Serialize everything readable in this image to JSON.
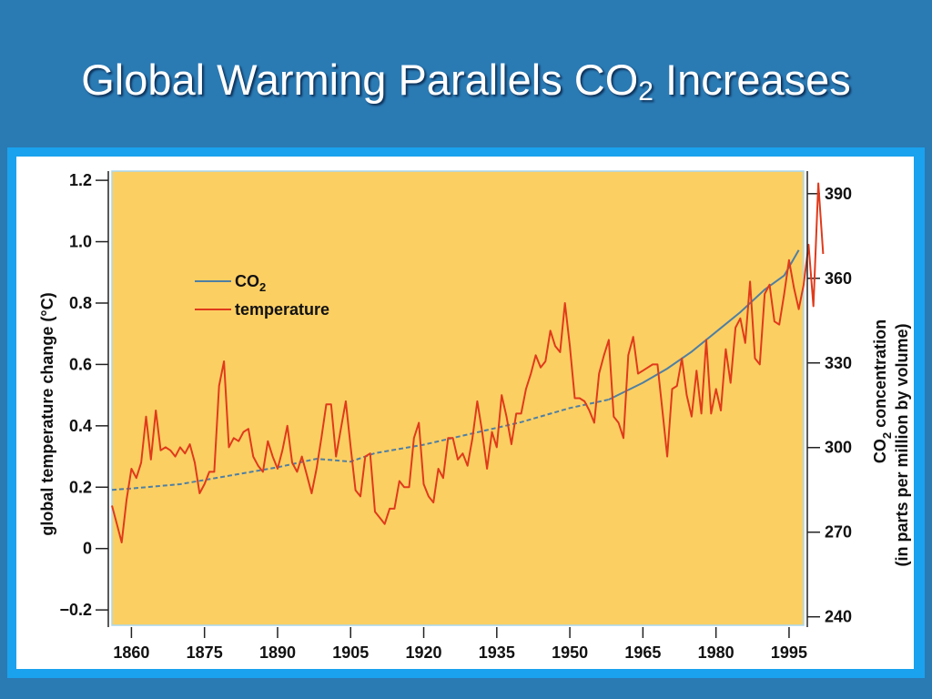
{
  "slide": {
    "title_main": "Global Warming Parallels CO",
    "title_sub": "2",
    "title_end": " Increases"
  },
  "chart_data": {
    "type": "line",
    "title": "Global Warming Parallels CO2 Increases",
    "xlabel": "",
    "ylabel_left": "global temperature change (°C)",
    "ylabel_right_line1_pre": "CO",
    "ylabel_right_line1_sub": "2",
    "ylabel_right_line1_post": " concentration",
    "ylabel_right_line2": "(in parts per million by volume)",
    "xlim": [
      1856,
      1998
    ],
    "ylim_left": [
      -0.25,
      1.23
    ],
    "ylim_right": [
      237,
      398
    ],
    "x_ticks": [
      1860,
      1875,
      1890,
      1905,
      1920,
      1935,
      1950,
      1965,
      1980,
      1995
    ],
    "y_ticks_left": [
      {
        "value": 1.2,
        "label": "1.2"
      },
      {
        "value": 1.0,
        "label": "1.0"
      },
      {
        "value": 0.8,
        "label": "0.8"
      },
      {
        "value": 0.6,
        "label": "0.6"
      },
      {
        "value": 0.4,
        "label": "0.4"
      },
      {
        "value": 0.2,
        "label": "0.2"
      },
      {
        "value": 0,
        "label": "0"
      },
      {
        "value": -0.2,
        "label": "−0.2"
      }
    ],
    "y_ticks_right": [
      240,
      270,
      300,
      330,
      360,
      390
    ],
    "plot_background": "#fccf63",
    "legend": {
      "position": "upper-left"
    },
    "series": [
      {
        "name_pre": "CO",
        "name_sub": "2",
        "axis": "right",
        "color": "#4e7fa3",
        "style": "dashed-then-solid",
        "solid_from_year": 1958,
        "points": [
          [
            1856,
            285
          ],
          [
            1860,
            285.5
          ],
          [
            1870,
            287
          ],
          [
            1880,
            290
          ],
          [
            1890,
            293
          ],
          [
            1898,
            296
          ],
          [
            1905,
            295
          ],
          [
            1910,
            298
          ],
          [
            1920,
            301
          ],
          [
            1930,
            305
          ],
          [
            1940,
            309
          ],
          [
            1950,
            314
          ],
          [
            1958,
            317
          ],
          [
            1965,
            323
          ],
          [
            1970,
            328
          ],
          [
            1975,
            334
          ],
          [
            1980,
            341
          ],
          [
            1985,
            348
          ],
          [
            1990,
            356
          ],
          [
            1994,
            361
          ],
          [
            1997,
            370
          ]
        ]
      },
      {
        "name": "temperature",
        "axis": "left",
        "color": "#e03a1b",
        "style": "solid",
        "points": [
          [
            1856,
            0.14
          ],
          [
            1857,
            0.08
          ],
          [
            1858,
            0.02
          ],
          [
            1859,
            0.16
          ],
          [
            1860,
            0.26
          ],
          [
            1861,
            0.23
          ],
          [
            1862,
            0.28
          ],
          [
            1863,
            0.43
          ],
          [
            1864,
            0.29
          ],
          [
            1865,
            0.45
          ],
          [
            1866,
            0.32
          ],
          [
            1867,
            0.33
          ],
          [
            1868,
            0.32
          ],
          [
            1869,
            0.3
          ],
          [
            1870,
            0.33
          ],
          [
            1871,
            0.31
          ],
          [
            1872,
            0.34
          ],
          [
            1873,
            0.28
          ],
          [
            1874,
            0.18
          ],
          [
            1875,
            0.21
          ],
          [
            1876,
            0.25
          ],
          [
            1877,
            0.25
          ],
          [
            1878,
            0.53
          ],
          [
            1879,
            0.61
          ],
          [
            1880,
            0.33
          ],
          [
            1881,
            0.36
          ],
          [
            1882,
            0.35
          ],
          [
            1883,
            0.38
          ],
          [
            1884,
            0.39
          ],
          [
            1885,
            0.3
          ],
          [
            1886,
            0.27
          ],
          [
            1887,
            0.25
          ],
          [
            1888,
            0.35
          ],
          [
            1889,
            0.3
          ],
          [
            1890,
            0.26
          ],
          [
            1891,
            0.32
          ],
          [
            1892,
            0.4
          ],
          [
            1893,
            0.28
          ],
          [
            1894,
            0.25
          ],
          [
            1895,
            0.3
          ],
          [
            1896,
            0.24
          ],
          [
            1897,
            0.18
          ],
          [
            1898,
            0.26
          ],
          [
            1899,
            0.36
          ],
          [
            1900,
            0.47
          ],
          [
            1901,
            0.47
          ],
          [
            1902,
            0.3
          ],
          [
            1903,
            0.39
          ],
          [
            1904,
            0.48
          ],
          [
            1905,
            0.33
          ],
          [
            1906,
            0.19
          ],
          [
            1907,
            0.17
          ],
          [
            1908,
            0.3
          ],
          [
            1909,
            0.31
          ],
          [
            1910,
            0.12
          ],
          [
            1911,
            0.1
          ],
          [
            1912,
            0.08
          ],
          [
            1913,
            0.13
          ],
          [
            1914,
            0.13
          ],
          [
            1915,
            0.22
          ],
          [
            1916,
            0.2
          ],
          [
            1917,
            0.2
          ],
          [
            1918,
            0.36
          ],
          [
            1919,
            0.41
          ],
          [
            1920,
            0.21
          ],
          [
            1921,
            0.17
          ],
          [
            1922,
            0.15
          ],
          [
            1923,
            0.26
          ],
          [
            1924,
            0.23
          ],
          [
            1925,
            0.36
          ],
          [
            1926,
            0.36
          ],
          [
            1927,
            0.29
          ],
          [
            1928,
            0.31
          ],
          [
            1929,
            0.27
          ],
          [
            1930,
            0.36
          ],
          [
            1931,
            0.48
          ],
          [
            1932,
            0.38
          ],
          [
            1933,
            0.26
          ],
          [
            1934,
            0.38
          ],
          [
            1935,
            0.33
          ],
          [
            1936,
            0.5
          ],
          [
            1937,
            0.43
          ],
          [
            1938,
            0.34
          ],
          [
            1939,
            0.44
          ],
          [
            1940,
            0.44
          ],
          [
            1941,
            0.52
          ],
          [
            1942,
            0.57
          ],
          [
            1943,
            0.63
          ],
          [
            1944,
            0.59
          ],
          [
            1945,
            0.61
          ],
          [
            1946,
            0.71
          ],
          [
            1947,
            0.66
          ],
          [
            1948,
            0.64
          ],
          [
            1949,
            0.8
          ],
          [
            1950,
            0.66
          ],
          [
            1951,
            0.49
          ],
          [
            1952,
            0.49
          ],
          [
            1953,
            0.48
          ],
          [
            1954,
            0.45
          ],
          [
            1955,
            0.41
          ],
          [
            1956,
            0.57
          ],
          [
            1957,
            0.63
          ],
          [
            1958,
            0.68
          ],
          [
            1959,
            0.43
          ],
          [
            1960,
            0.41
          ],
          [
            1961,
            0.36
          ],
          [
            1962,
            0.63
          ],
          [
            1963,
            0.69
          ],
          [
            1964,
            0.57
          ],
          [
            1965,
            0.58
          ],
          [
            1966,
            0.59
          ],
          [
            1967,
            0.6
          ],
          [
            1968,
            0.6
          ],
          [
            1969,
            0.45
          ],
          [
            1970,
            0.3
          ],
          [
            1971,
            0.52
          ],
          [
            1972,
            0.53
          ],
          [
            1973,
            0.62
          ],
          [
            1974,
            0.5
          ],
          [
            1975,
            0.43
          ],
          [
            1976,
            0.58
          ],
          [
            1977,
            0.44
          ],
          [
            1978,
            0.68
          ],
          [
            1979,
            0.44
          ],
          [
            1980,
            0.52
          ],
          [
            1981,
            0.45
          ],
          [
            1982,
            0.65
          ],
          [
            1983,
            0.54
          ],
          [
            1984,
            0.72
          ],
          [
            1985,
            0.75
          ],
          [
            1986,
            0.67
          ],
          [
            1987,
            0.87
          ],
          [
            1988,
            0.62
          ],
          [
            1989,
            0.6
          ],
          [
            1990,
            0.83
          ],
          [
            1991,
            0.86
          ],
          [
            1992,
            0.74
          ],
          [
            1993,
            0.73
          ],
          [
            1994,
            0.83
          ],
          [
            1995,
            0.94
          ],
          [
            1996,
            0.85
          ],
          [
            1997,
            0.78
          ],
          [
            1998,
            0.86
          ],
          [
            1999,
            0.99
          ],
          [
            2000,
            0.79
          ],
          [
            2001,
            1.19
          ],
          [
            2002,
            0.96
          ]
        ]
      }
    ]
  }
}
